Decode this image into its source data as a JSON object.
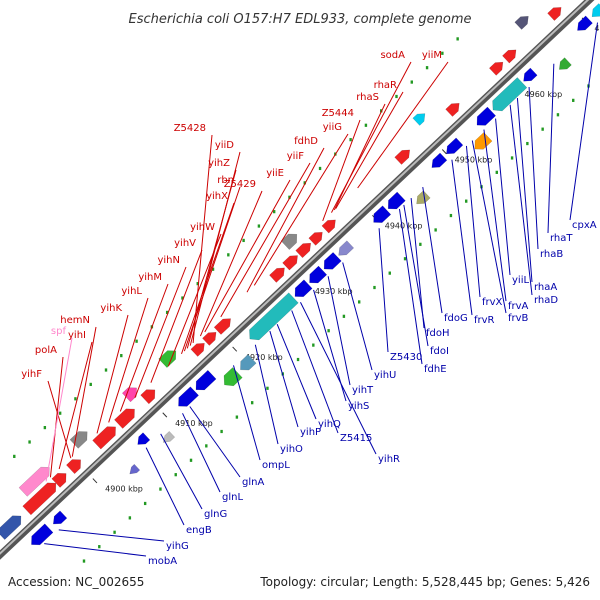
{
  "title": "Escherichia coli O157:H7 EDL933, complete genome",
  "footer": {
    "accession": "Accession: NC_002655",
    "summary": "Topology: circular; Length: 5,528,445 bp; Genes: 5,426"
  },
  "colors": {
    "forward_label": "#cc0000",
    "reverse_label": "#0000aa",
    "pseudo_label": "#ff88cc",
    "backbone": "#777777",
    "dots": "#229922"
  },
  "ticks": [
    "4900 kbp",
    "4910 kbp",
    "4920 kbp",
    "4930 kbp",
    "4940 kbp",
    "4950 kbp",
    "4960 kbp",
    "4970 kbp"
  ],
  "forward_labels": [
    "yihF",
    "polA",
    "spf",
    "yihI",
    "hemN",
    "yihK",
    "yihL",
    "yihM",
    "yihN",
    "yihV",
    "yihW",
    "yihX",
    "rbn",
    "yihZ",
    "yiiD",
    "Z5428",
    "Z5429",
    "yiiE",
    "yiiF",
    "fdhD",
    "yiiG",
    "Z5444",
    "rhaS",
    "rhaR",
    "sodA",
    "yiiM"
  ],
  "reverse_labels": [
    "mobA",
    "yihG",
    "engB",
    "glnG",
    "glnL",
    "glnA",
    "ompL",
    "yihO",
    "yihP",
    "yihQ",
    "Z5415",
    "yihR",
    "yihS",
    "yihT",
    "yihU",
    "Z5430",
    "fdhE",
    "fdoI",
    "fdoH",
    "fdoG",
    "frvR",
    "frvX",
    "frvB",
    "frvA",
    "yiiL",
    "rhaD",
    "rhaA",
    "rhaB",
    "rhaT",
    "cpxA"
  ]
}
